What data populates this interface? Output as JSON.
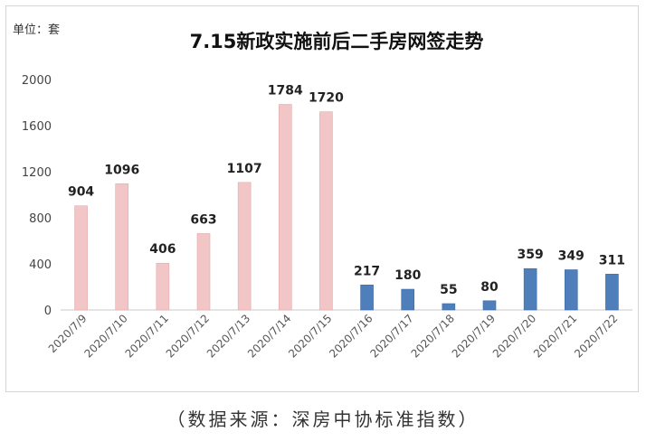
{
  "chart_data": {
    "type": "bar",
    "title": "7.15新政实施前后二手房网签走势",
    "unit_label": "单位：套",
    "categories": [
      "2020/7/9",
      "2020/7/10",
      "2020/7/11",
      "2020/7/12",
      "2020/7/13",
      "2020/7/14",
      "2020/7/15",
      "2020/7/16",
      "2020/7/17",
      "2020/7/18",
      "2020/7/19",
      "2020/7/20",
      "2020/7/21",
      "2020/7/22"
    ],
    "values": [
      904,
      1096,
      406,
      663,
      1107,
      1784,
      1720,
      217,
      180,
      55,
      80,
      359,
      349,
      311
    ],
    "ylim": [
      0,
      2000
    ],
    "yticks": [
      0,
      400,
      800,
      1200,
      1600,
      2000
    ],
    "grid": false,
    "legend": "none",
    "colors": {
      "before": "#f2c6c6",
      "before_edge": "#e3a9a9",
      "after": "#4f7fba",
      "after_edge": "#3f6aa3"
    },
    "before_count": 7
  },
  "footer": {
    "source": "（数据来源：深房中协标准指数）"
  }
}
